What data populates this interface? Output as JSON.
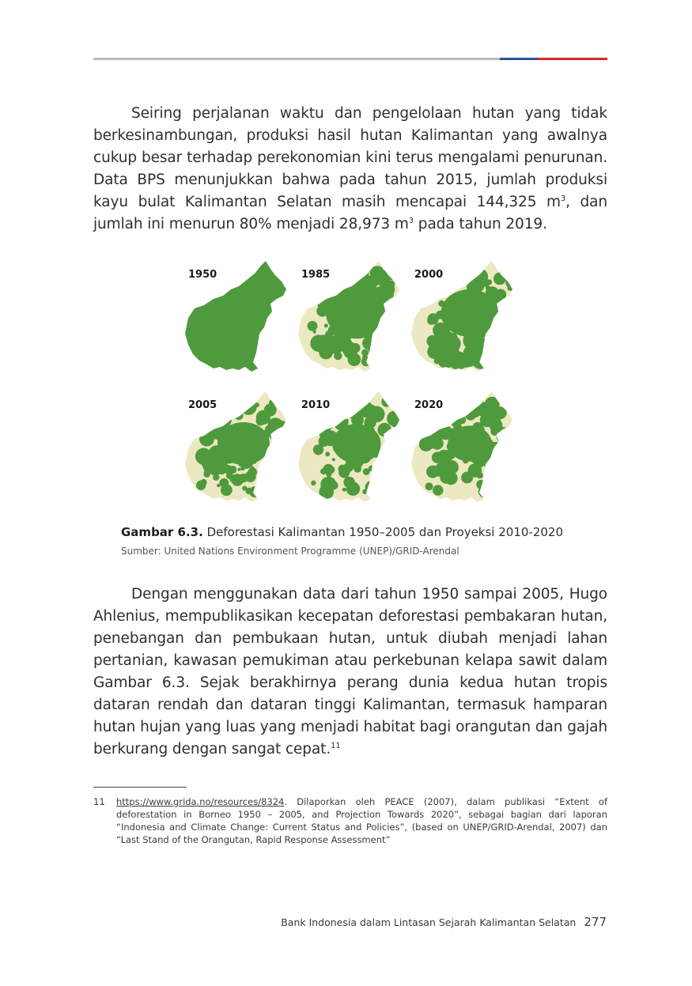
{
  "paragraph1": {
    "text_a": "Seiring perjalanan waktu dan pengelolaan hutan yang tidak berkesinambungan, produksi hasil hutan Kalimantan yang awalnya cukup besar terhadap perekonomian kini terus mengalami penurunan. Data BPS menunjukkan bahwa pada tahun 2015, jumlah produksi kayu bulat Kalimantan Selatan masih mencapai 144,325 m",
    "sup_a": "3",
    "text_b": ", dan jumlah ini menurun 80% menjadi 28,973 m",
    "sup_b": "3",
    "text_c": " pada tahun 2019."
  },
  "figure": {
    "maps": [
      {
        "year": "1950",
        "forest_cover": 1.0
      },
      {
        "year": "1985",
        "forest_cover": 0.7
      },
      {
        "year": "2000",
        "forest_cover": 0.62
      },
      {
        "year": "2005",
        "forest_cover": 0.5
      },
      {
        "year": "2010",
        "forest_cover": 0.42
      },
      {
        "year": "2020",
        "forest_cover": 0.33
      }
    ],
    "caption_label": "Gambar 6.3.",
    "caption_text": " Deforestasi Kalimantan 1950–2005 dan Proyeksi 2010-2020",
    "source": "Sumber: United Nations Environment Programme (UNEP)/GRID-Arendal",
    "colors": {
      "forest": "#4f9a3d",
      "cleared": "#ece8c2"
    }
  },
  "paragraph2": {
    "text": "Dengan menggunakan data dari tahun 1950 sampai 2005, Hugo Ahlenius, mempublikasikan kecepatan deforestasi pembakaran hutan, penebangan dan pembukaan hutan, untuk diubah menjadi lahan pertanian, kawasan pemukiman atau perkebunan kelapa sawit dalam Gambar 6.3. Sejak berakhirnya perang dunia kedua hutan tropis dataran rendah dan dataran tinggi Kalimantan, termasuk hamparan hutan hujan yang luas yang menjadi habitat bagi orangutan dan gajah berkurang dengan sangat cepat.",
    "footnote_ref": "11"
  },
  "footnote": {
    "number": "11",
    "link": "https://www.grida.no/resources/8324",
    "text": ". Dilaporkan oleh PEACE (2007), dalam publikasi “Extent of deforestation in Borneo 1950 – 2005, and Projection Towards 2020”, sebagai bagian dari laporan “Indonesia and Climate Change: Current Status and Policies”, (based on UNEP/GRID-Arendal, 2007) dan “Last Stand of the Orangutan, Rapid Response Assessment”"
  },
  "footer": {
    "title": "Bank Indonesia dalam Lintasan Sejarah Kalimantan Selatan",
    "page_number": "277"
  }
}
